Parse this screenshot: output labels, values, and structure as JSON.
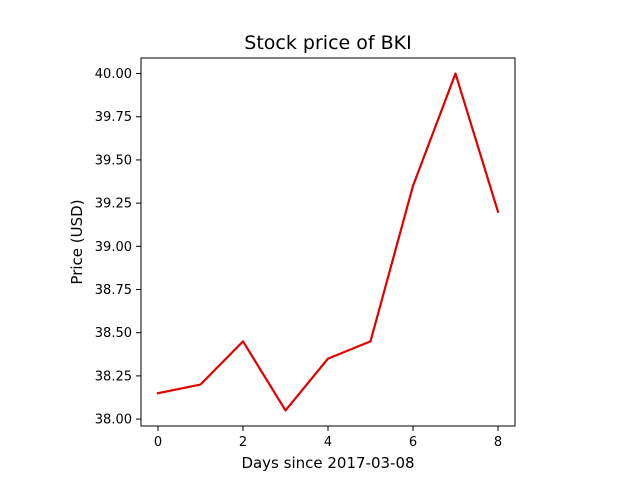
{
  "chart_data": {
    "type": "line",
    "title": "Stock price of BKI",
    "xlabel": "Days since 2017-03-08",
    "ylabel": "Price (USD)",
    "x": [
      0,
      1,
      2,
      3,
      4,
      5,
      6,
      7,
      8
    ],
    "series": [
      {
        "values": [
          38.15,
          38.2,
          38.45,
          38.05,
          38.35,
          38.45,
          39.35,
          40.0,
          39.2
        ],
        "color": "#e00000"
      }
    ],
    "xlim": [
      -0.4,
      8.4
    ],
    "ylim": [
      37.96,
      40.09
    ],
    "xticks": [
      0,
      2,
      4,
      6,
      8
    ],
    "xtick_labels": [
      "0",
      "2",
      "4",
      "6",
      "8"
    ],
    "yticks": [
      38.0,
      38.25,
      38.5,
      38.75,
      39.0,
      39.25,
      39.5,
      39.75,
      40.0
    ],
    "ytick_labels": [
      "38.00",
      "38.25",
      "38.50",
      "38.75",
      "39.00",
      "39.25",
      "39.50",
      "39.75",
      "40.00"
    ],
    "grid": false,
    "legend": "none"
  }
}
